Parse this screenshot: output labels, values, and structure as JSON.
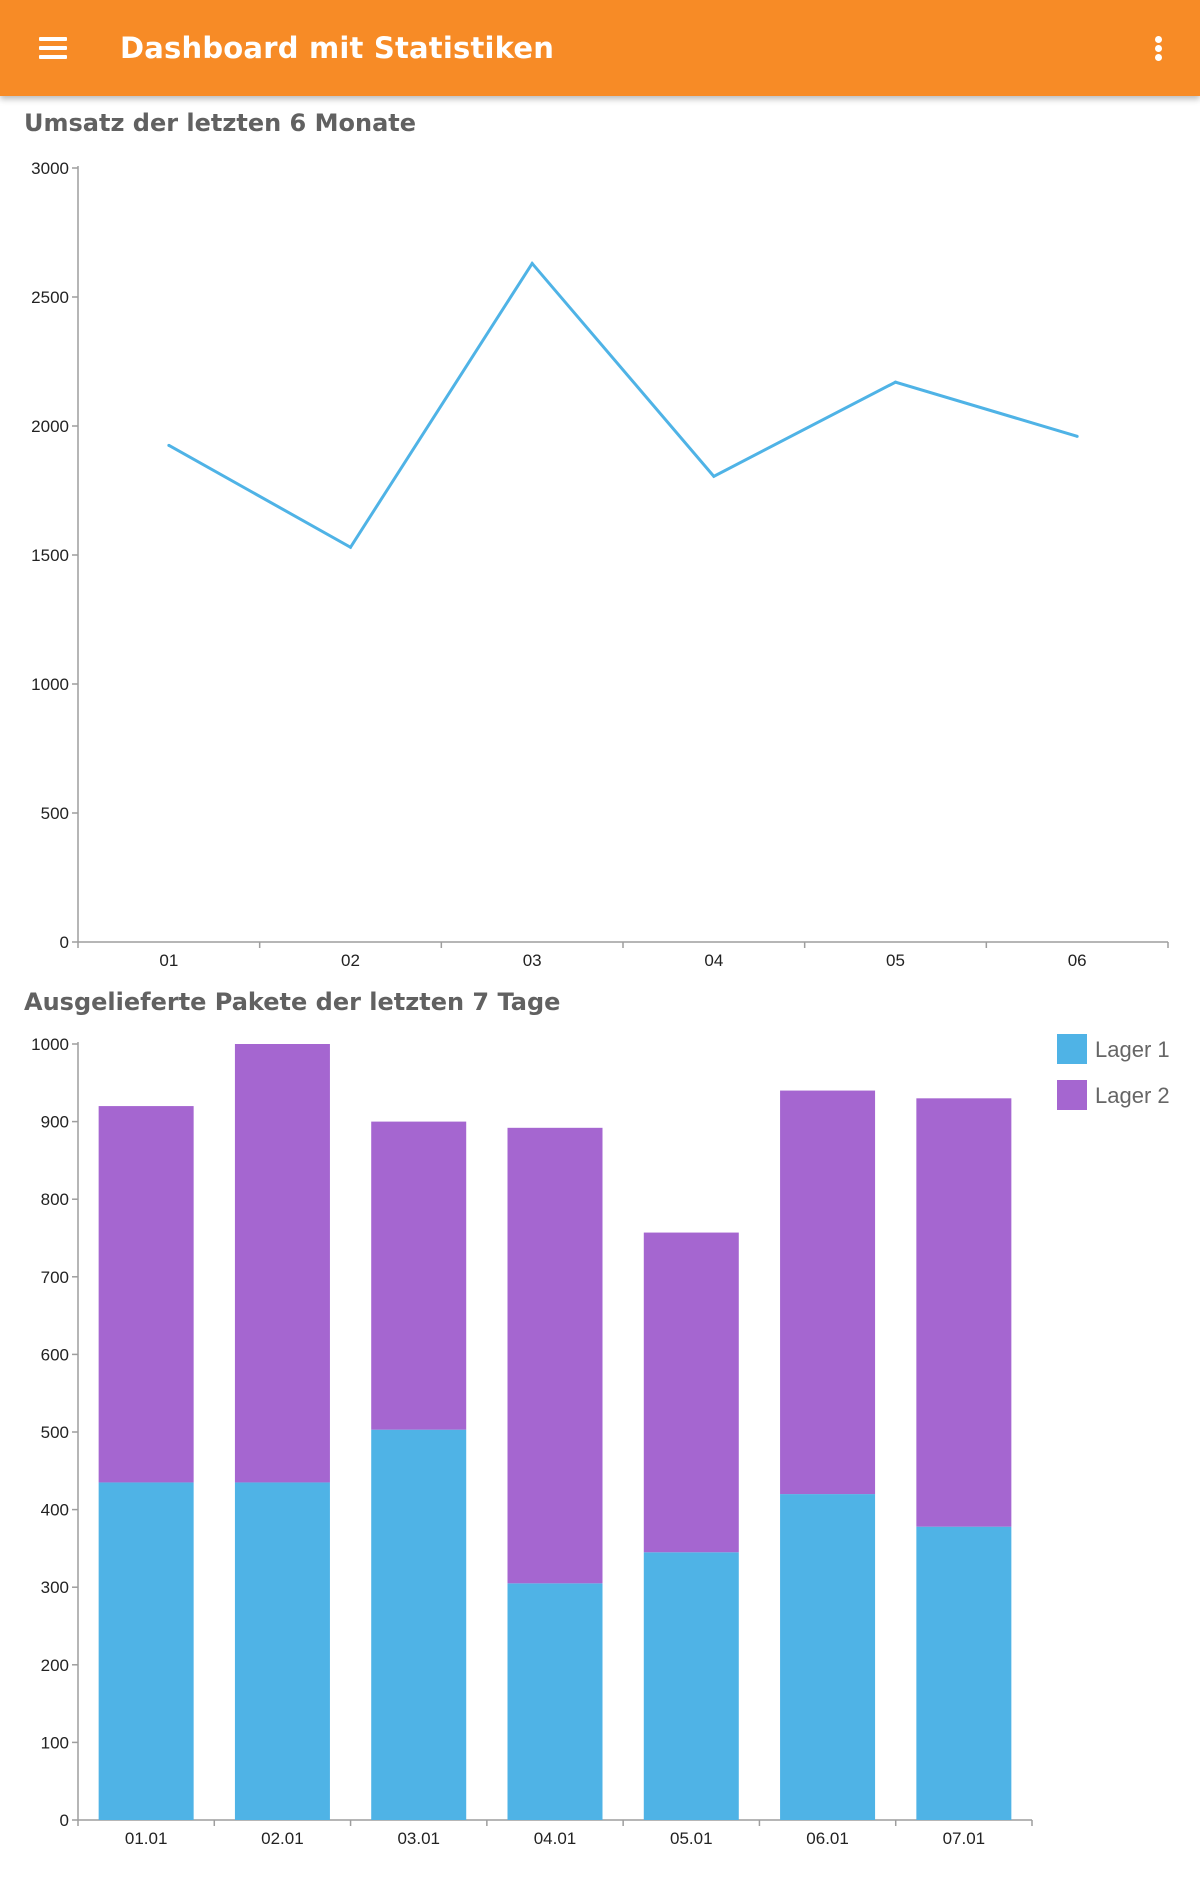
{
  "app_bar": {
    "title": "Dashboard mit Statistiken",
    "menu_icon": "hamburger-menu-icon",
    "overflow_icon": "more-vert-icon",
    "background_color": "#F78B26"
  },
  "chart_data": [
    {
      "type": "line",
      "title": "Umsatz der letzten 6 Monate",
      "categories": [
        "01",
        "02",
        "03",
        "04",
        "05",
        "06"
      ],
      "series": [
        {
          "name": "Umsatz",
          "values": [
            1925,
            1530,
            2630,
            1805,
            2170,
            1960
          ],
          "color": "#4FB3E6"
        }
      ],
      "ylim": [
        0,
        3000
      ],
      "yticks": [
        0,
        500,
        1000,
        1500,
        2000,
        2500,
        3000
      ],
      "xlabel": "",
      "ylabel": "",
      "grid": false,
      "legend": "none"
    },
    {
      "type": "bar",
      "stacked": true,
      "title": "Ausgelieferte Pakete der letzten 7 Tage",
      "categories": [
        "01.01",
        "02.01",
        "03.01",
        "04.01",
        "05.01",
        "06.01",
        "07.01"
      ],
      "series": [
        {
          "name": "Lager 1",
          "values": [
            435,
            435,
            503,
            305,
            345,
            420,
            378
          ],
          "color": "#4FB3E6"
        },
        {
          "name": "Lager 2",
          "values": [
            485,
            565,
            397,
            587,
            412,
            520,
            552
          ],
          "color": "#A566D0"
        }
      ],
      "ylim": [
        0,
        1000
      ],
      "yticks": [
        0,
        100,
        200,
        300,
        400,
        500,
        600,
        700,
        800,
        900,
        1000
      ],
      "xlabel": "",
      "ylabel": "",
      "grid": false,
      "legend": "top-right"
    }
  ]
}
